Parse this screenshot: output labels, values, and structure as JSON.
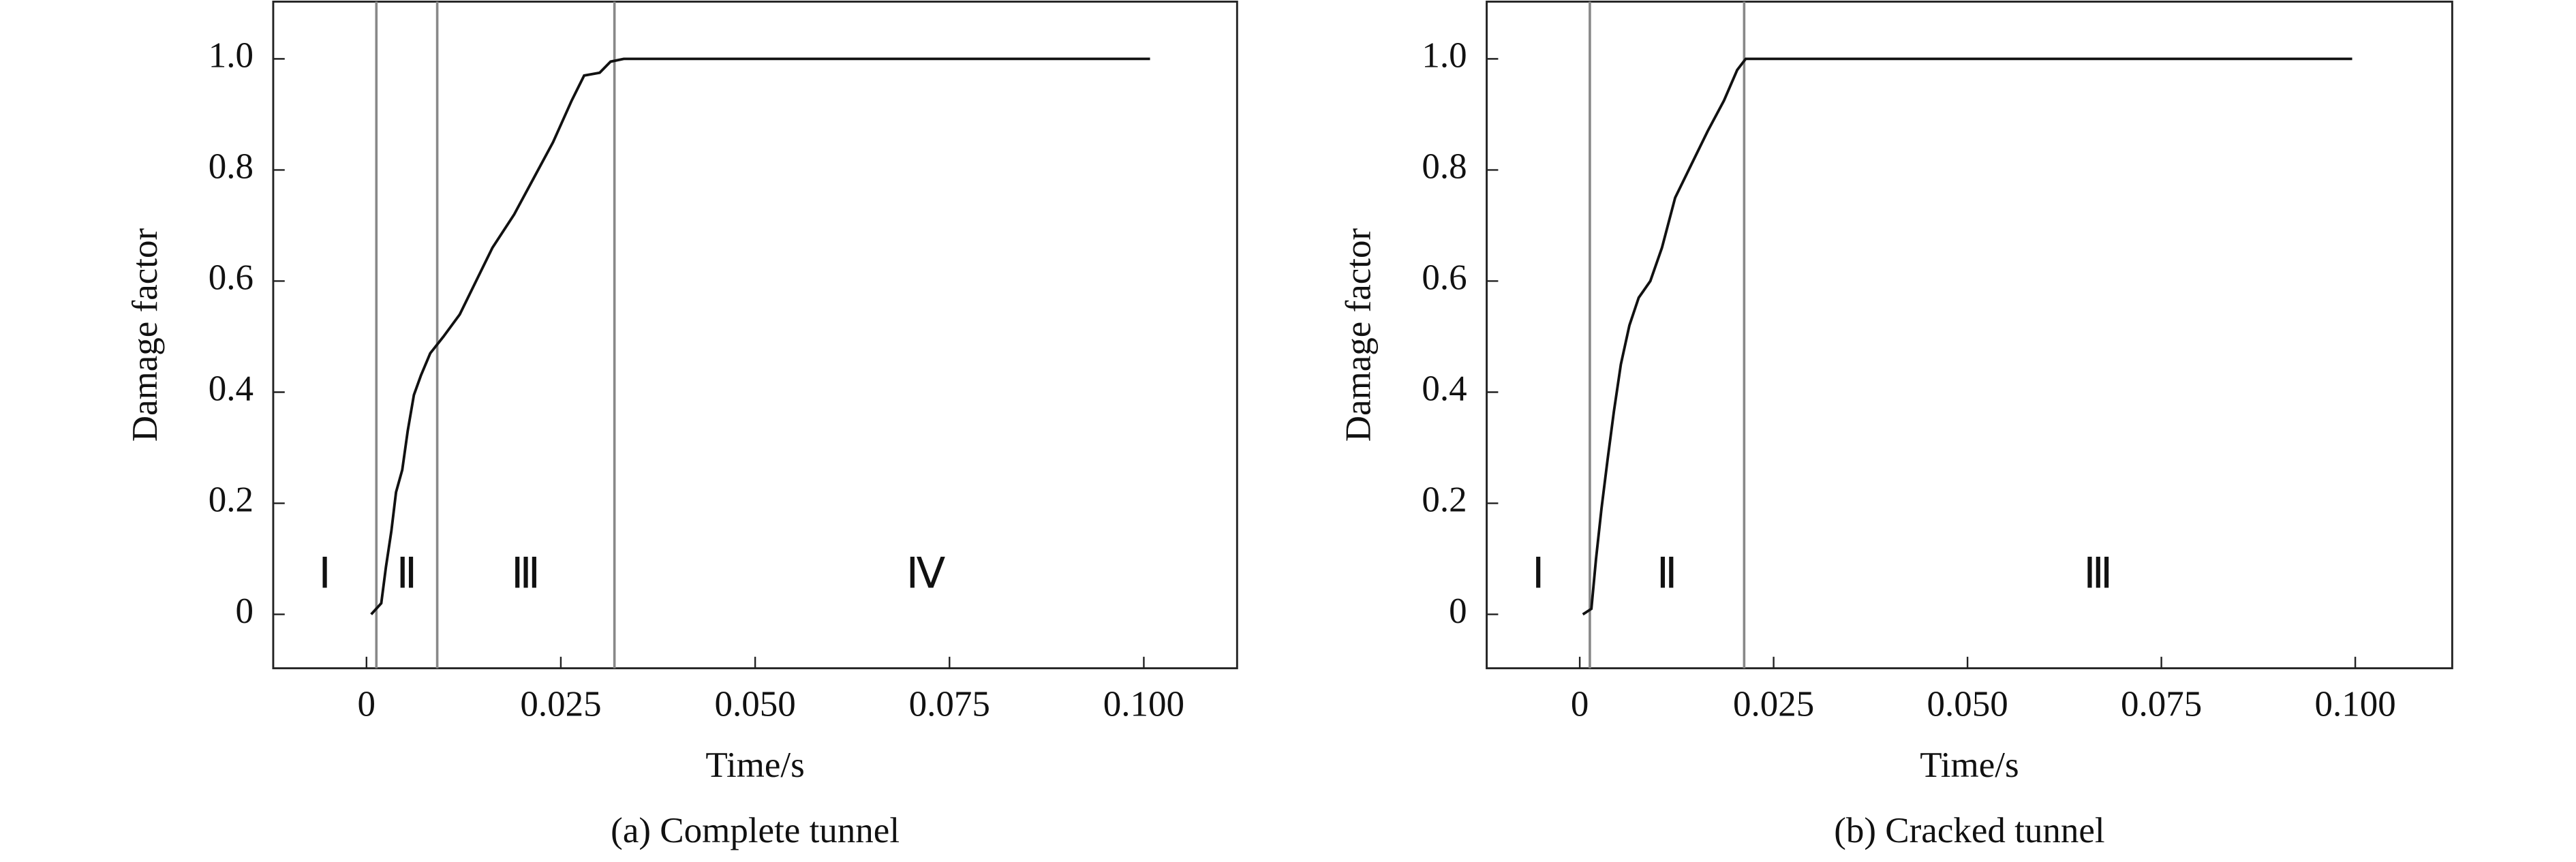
{
  "chart_data": [
    {
      "type": "line",
      "xlabel": "Time/s",
      "ylabel": "Damage factor",
      "caption": "(a) Complete tunnel",
      "xlim": [
        -0.012,
        0.112
      ],
      "ylim": [
        -0.097,
        1.103
      ],
      "xticks": [
        0,
        0.025,
        {
          "value": 0.05,
          "label": "0.050"
        },
        0.075,
        {
          "value": 0.1,
          "label": "0.100"
        }
      ],
      "yticks": [
        0,
        0.2,
        0.4,
        0.6,
        0.8,
        {
          "value": 1,
          "label": "1.0"
        }
      ],
      "stage_boundaries": [
        0.00127,
        0.0091,
        0.0319
      ],
      "stage_labels": [
        "Ⅰ",
        "Ⅱ",
        "Ⅲ",
        "Ⅳ"
      ],
      "series": [
        {
          "color": "#111111",
          "x": [
            0.0006,
            0.0019,
            0.0025,
            0.0032,
            0.0038,
            0.0046,
            0.0053,
            0.0061,
            0.007,
            0.0082,
            0.0099,
            0.012,
            0.0141,
            0.0162,
            0.019,
            0.0215,
            0.024,
            0.0264,
            0.028,
            0.03,
            0.0314,
            0.0331,
            0.1008
          ],
          "values": [
            0,
            0.02,
            0.085,
            0.15,
            0.22,
            0.26,
            0.33,
            0.395,
            0.43,
            0.47,
            0.5,
            0.54,
            0.6,
            0.66,
            0.72,
            0.785,
            0.85,
            0.925,
            0.97,
            0.975,
            0.995,
            1.0,
            1.0
          ]
        }
      ]
    },
    {
      "type": "line",
      "xlabel": "Time/s",
      "ylabel": "Damage factor",
      "caption": "(b) Cracked tunnel",
      "xlim": [
        -0.012,
        0.1125
      ],
      "ylim": [
        -0.097,
        1.103
      ],
      "xticks": [
        0,
        0.025,
        {
          "value": 0.05,
          "label": "0.050"
        },
        0.075,
        {
          "value": 0.1,
          "label": "0.100"
        }
      ],
      "yticks": [
        0,
        0.2,
        0.4,
        0.6,
        0.8,
        {
          "value": 1,
          "label": "1.0"
        }
      ],
      "stage_boundaries": [
        0.0013,
        0.0212
      ],
      "stage_labels": [
        "Ⅰ",
        "Ⅱ",
        "Ⅲ"
      ],
      "series": [
        {
          "color": "#111111",
          "x": [
            0.0004,
            0.0015,
            0.0021,
            0.0028,
            0.0036,
            0.0044,
            0.0053,
            0.0064,
            0.0076,
            0.0091,
            0.0106,
            0.0123,
            0.0144,
            0.0165,
            0.0186,
            0.0203,
            0.0214,
            0.0996
          ],
          "values": [
            0,
            0.01,
            0.1,
            0.19,
            0.28,
            0.365,
            0.45,
            0.52,
            0.57,
            0.6,
            0.66,
            0.75,
            0.81,
            0.87,
            0.925,
            0.98,
            1.0,
            1.0
          ]
        }
      ]
    }
  ]
}
